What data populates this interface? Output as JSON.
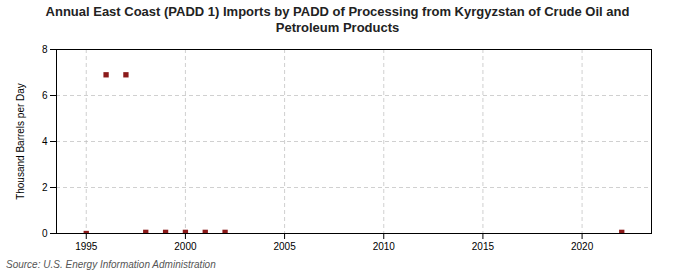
{
  "chart_data": {
    "type": "scatter",
    "title": "Annual East Coast (PADD 1) Imports by PADD of Processing from Kyrgyzstan of Crude Oil and\nPetroleum Products",
    "ylabel": "Thousand Barrels per Day",
    "source": "Source: U.S. Energy Information Administration",
    "x": [
      1995,
      1996,
      1997,
      1998,
      1999,
      2000,
      2001,
      2002,
      2022
    ],
    "values": [
      0.0,
      6.9,
      6.9,
      0.05,
      0.05,
      0.05,
      0.05,
      0.05,
      0.05
    ],
    "color": "#8b1a1a",
    "marker": "square",
    "xlim": [
      1993.5,
      2023.5
    ],
    "ylim": [
      0,
      8
    ],
    "xticks": [
      1995,
      2000,
      2005,
      2010,
      2015,
      2020
    ],
    "yticks": [
      0,
      2,
      4,
      6,
      8
    ],
    "grid": true
  }
}
